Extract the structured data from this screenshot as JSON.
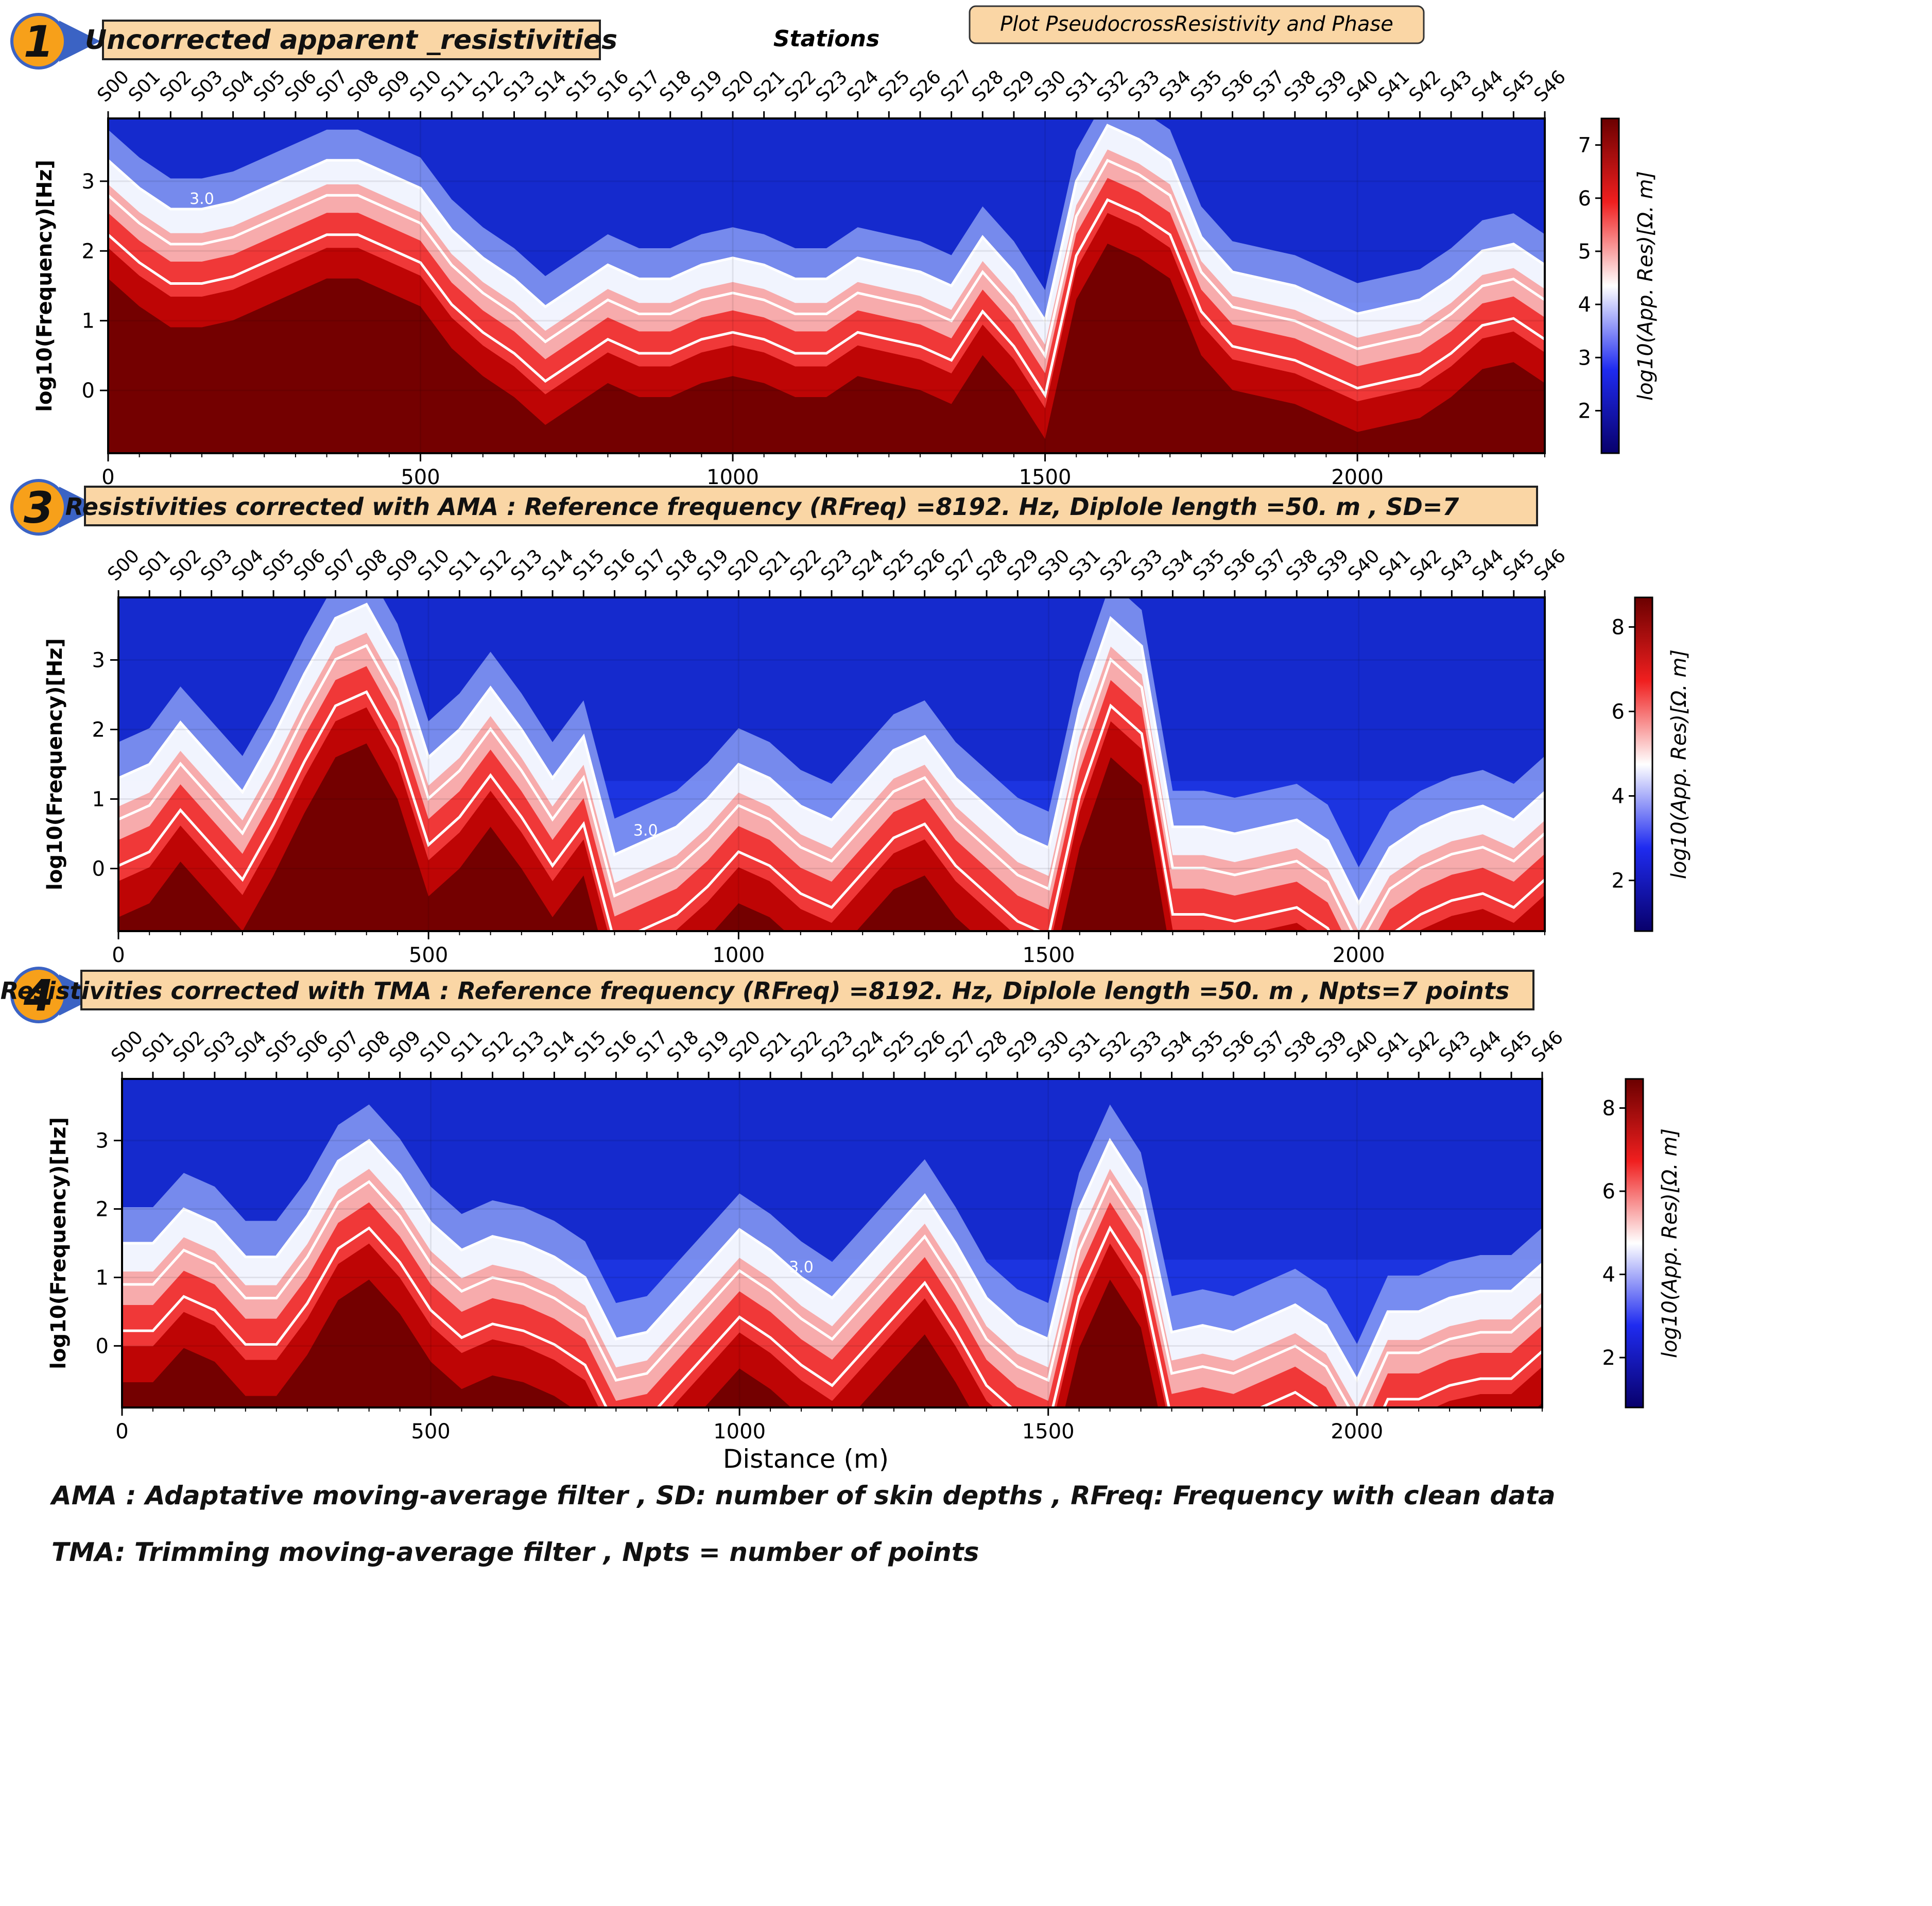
{
  "figure": {
    "stations_label": "Stations",
    "plot_button": "Plot PseudocrossResistivity and Phase",
    "xlabel": "Distance (m)",
    "notes": [
      "AMA  : Adaptative moving-average filter , SD: number of skin depths , RFreq: Frequency with clean data",
      "TMA: Trimming moving-average filter , Npts = number of points"
    ]
  },
  "colors": {
    "low": "#08006b",
    "mid": "#ffffff",
    "high": "#6b0000",
    "contour": "#ffffff",
    "badge": "#f7a01a",
    "banner": "#fad6a5"
  },
  "chart_data": [
    {
      "type": "heatmap",
      "badge": "1",
      "title": "Uncorrected apparent _resistivities",
      "stations": [
        "S00",
        "S01",
        "S02",
        "S03",
        "S04",
        "S05",
        "S06",
        "S07",
        "S08",
        "S09",
        "S10",
        "S11",
        "S12",
        "S13",
        "S14",
        "S15",
        "S16",
        "S17",
        "S18",
        "S19",
        "S20",
        "S21",
        "S22",
        "S23",
        "S24",
        "S25",
        "S26",
        "S27",
        "S28",
        "S29",
        "S30",
        "S31",
        "S32",
        "S33",
        "S34",
        "S35",
        "S36",
        "S37",
        "S38",
        "S39",
        "S40",
        "S41",
        "S42",
        "S43",
        "S44",
        "S45",
        "S46"
      ],
      "xlim": [
        0,
        2300
      ],
      "xticks": [
        0,
        500,
        1000,
        1500,
        2000
      ],
      "ylabel": "log10(Frequency)[Hz]",
      "ylim": [
        -0.9,
        3.9
      ],
      "yticks": [
        0,
        1,
        2,
        3
      ],
      "colorbar_label": "log10(App. Res)[Ω. m]",
      "clim": [
        1.2,
        7.5
      ],
      "cticks": [
        2,
        3,
        4,
        5,
        6,
        7
      ],
      "contour_label": "3.0",
      "boundary": [
        3.3,
        2.9,
        2.6,
        2.6,
        2.7,
        2.9,
        3.1,
        3.3,
        3.3,
        3.1,
        2.9,
        2.3,
        1.9,
        1.6,
        1.2,
        1.5,
        1.8,
        1.6,
        1.6,
        1.8,
        1.9,
        1.8,
        1.6,
        1.6,
        1.9,
        1.8,
        1.7,
        1.5,
        2.2,
        1.7,
        1.0,
        3.0,
        3.8,
        3.6,
        3.3,
        2.2,
        1.7,
        1.6,
        1.5,
        1.3,
        1.1,
        1.2,
        1.3,
        1.6,
        2.0,
        2.1,
        1.8
      ],
      "scale": 0.85
    },
    {
      "type": "heatmap",
      "badge": "3",
      "title": "Resistivities corrected with  AMA  : Reference frequency (RFreq) =8192. Hz, Diplole length =50. m , SD=7",
      "stations": [
        "S00",
        "S01",
        "S02",
        "S03",
        "S04",
        "S05",
        "S06",
        "S07",
        "S08",
        "S09",
        "S10",
        "S11",
        "S12",
        "S13",
        "S14",
        "S15",
        "S16",
        "S17",
        "S18",
        "S19",
        "S20",
        "S21",
        "S22",
        "S23",
        "S24",
        "S25",
        "S26",
        "S27",
        "S28",
        "S29",
        "S30",
        "S31",
        "S32",
        "S33",
        "S34",
        "S35",
        "S36",
        "S37",
        "S38",
        "S39",
        "S40",
        "S41",
        "S42",
        "S43",
        "S44",
        "S45",
        "S46"
      ],
      "xlim": [
        0,
        2300
      ],
      "xticks": [
        0,
        500,
        1000,
        1500,
        2000
      ],
      "ylabel": "log10(Frequency)[Hz]",
      "ylim": [
        -0.9,
        3.9
      ],
      "yticks": [
        0,
        1,
        2,
        3
      ],
      "colorbar_label": "log10(App. Res)[Ω. m]",
      "clim": [
        0.8,
        8.7
      ],
      "cticks": [
        2,
        4,
        6,
        8
      ],
      "contour_label": "3.0",
      "boundary": [
        1.3,
        1.5,
        2.1,
        1.6,
        1.1,
        1.9,
        2.8,
        3.6,
        3.8,
        3.0,
        1.6,
        2.0,
        2.6,
        2.0,
        1.3,
        1.9,
        0.2,
        0.4,
        0.6,
        1.0,
        1.5,
        1.3,
        0.9,
        0.7,
        1.2,
        1.7,
        1.9,
        1.3,
        0.9,
        0.5,
        0.3,
        2.3,
        3.6,
        3.2,
        0.6,
        0.6,
        0.5,
        0.6,
        0.7,
        0.4,
        -0.5,
        0.3,
        0.6,
        0.8,
        0.9,
        0.7,
        1.1
      ],
      "scale": 1.0
    },
    {
      "type": "heatmap",
      "badge": "4",
      "title": "Resistivities corrected with  TMA  : Reference frequency (RFreq) =8192. Hz, Diplole length =50. m , Npts=7 points",
      "stations": [
        "S00",
        "S01",
        "S02",
        "S03",
        "S04",
        "S05",
        "S06",
        "S07",
        "S08",
        "S09",
        "S10",
        "S11",
        "S12",
        "S13",
        "S14",
        "S15",
        "S16",
        "S17",
        "S18",
        "S19",
        "S20",
        "S21",
        "S22",
        "S23",
        "S24",
        "S25",
        "S26",
        "S27",
        "S28",
        "S29",
        "S30",
        "S31",
        "S32",
        "S33",
        "S34",
        "S35",
        "S36",
        "S37",
        "S38",
        "S39",
        "S40",
        "S41",
        "S42",
        "S43",
        "S44",
        "S45",
        "S46"
      ],
      "xlim": [
        0,
        2300
      ],
      "xticks": [
        0,
        500,
        1000,
        1500,
        2000
      ],
      "ylabel": "log10(Frequency)[Hz]",
      "ylim": [
        -0.9,
        3.9
      ],
      "yticks": [
        0,
        1,
        2,
        3
      ],
      "colorbar_label": "log10(App. Res)[Ω. m]",
      "clim": [
        0.8,
        8.7
      ],
      "cticks": [
        2,
        4,
        6,
        8
      ],
      "contour_label": "3.0",
      "boundary": [
        1.5,
        1.5,
        2.0,
        1.8,
        1.3,
        1.3,
        1.9,
        2.7,
        3.0,
        2.5,
        1.8,
        1.4,
        1.6,
        1.5,
        1.3,
        1.0,
        0.1,
        0.2,
        0.7,
        1.2,
        1.7,
        1.4,
        1.0,
        0.7,
        1.2,
        1.7,
        2.2,
        1.5,
        0.7,
        0.3,
        0.1,
        2.0,
        3.0,
        2.3,
        0.2,
        0.3,
        0.2,
        0.4,
        0.6,
        0.3,
        -0.5,
        0.5,
        0.5,
        0.7,
        0.8,
        0.8,
        1.2
      ],
      "scale": 1.0
    }
  ]
}
